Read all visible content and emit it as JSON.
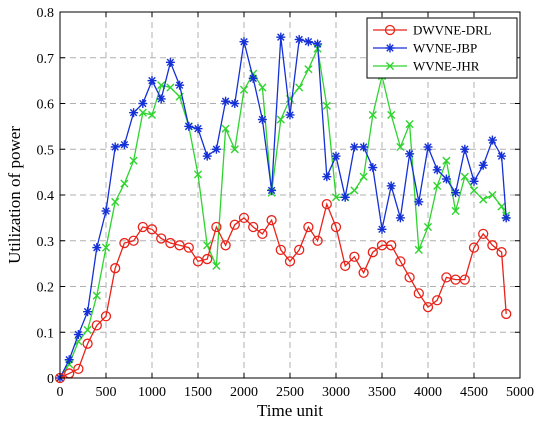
{
  "chart_data": {
    "type": "line",
    "xlabel": "Time unit",
    "ylabel": "Utilization of power",
    "xlim": [
      0,
      5000
    ],
    "ylim": [
      0,
      0.8
    ],
    "xticks": [
      0,
      500,
      1000,
      1500,
      2000,
      2500,
      3000,
      3500,
      4000,
      4500,
      5000
    ],
    "yticks": [
      0,
      0.1,
      0.2,
      0.3,
      0.4,
      0.5,
      0.6,
      0.7,
      0.8
    ],
    "grid": true,
    "legend_position": "top-right",
    "x": [
      0,
      100,
      200,
      300,
      400,
      500,
      600,
      700,
      800,
      900,
      1000,
      1100,
      1200,
      1300,
      1400,
      1500,
      1600,
      1700,
      1800,
      1900,
      2000,
      2100,
      2200,
      2300,
      2400,
      2500,
      2600,
      2700,
      2800,
      2900,
      3000,
      3100,
      3200,
      3300,
      3400,
      3500,
      3600,
      3700,
      3800,
      3900,
      4000,
      4100,
      4200,
      4300,
      4400,
      4500,
      4600,
      4700,
      4800,
      4850
    ],
    "series": [
      {
        "name": "DWVNE-DRL",
        "color": "#e8231a",
        "marker": "circle",
        "values": [
          0.0,
          0.01,
          0.02,
          0.075,
          0.115,
          0.135,
          0.24,
          0.295,
          0.3,
          0.33,
          0.325,
          0.305,
          0.295,
          0.29,
          0.285,
          0.255,
          0.26,
          0.33,
          0.29,
          0.335,
          0.35,
          0.33,
          0.315,
          0.345,
          0.28,
          0.255,
          0.28,
          0.33,
          0.3,
          0.38,
          0.33,
          0.245,
          0.265,
          0.23,
          0.275,
          0.29,
          0.29,
          0.255,
          0.22,
          0.185,
          0.155,
          0.17,
          0.22,
          0.215,
          0.215,
          0.285,
          0.315,
          0.29,
          0.275,
          0.14
        ]
      },
      {
        "name": "WVNE-JBP",
        "color": "#1430d6",
        "marker": "asterisk",
        "values": [
          0.0,
          0.04,
          0.095,
          0.145,
          0.285,
          0.365,
          0.505,
          0.51,
          0.58,
          0.6,
          0.65,
          0.61,
          0.69,
          0.64,
          0.55,
          0.545,
          0.485,
          0.5,
          0.605,
          0.6,
          0.735,
          0.655,
          0.565,
          0.41,
          0.745,
          0.575,
          0.74,
          0.735,
          0.73,
          0.44,
          0.485,
          0.395,
          0.505,
          0.505,
          0.46,
          0.325,
          0.42,
          0.35,
          0.49,
          0.385,
          0.505,
          0.455,
          0.435,
          0.405,
          0.5,
          0.43,
          0.465,
          0.52,
          0.485,
          0.35
        ]
      },
      {
        "name": "WVNE-JHR",
        "color": "#2fd42f",
        "marker": "cross",
        "values": [
          0.0,
          0.03,
          0.08,
          0.105,
          0.18,
          0.285,
          0.385,
          0.425,
          0.475,
          0.58,
          0.575,
          0.64,
          0.635,
          0.615,
          0.55,
          0.445,
          0.29,
          0.245,
          0.545,
          0.5,
          0.63,
          0.665,
          0.635,
          0.405,
          0.565,
          0.61,
          0.635,
          0.675,
          0.72,
          0.595,
          0.395,
          0.395,
          0.41,
          0.44,
          0.575,
          0.66,
          0.575,
          0.505,
          0.555,
          0.28,
          0.33,
          0.42,
          0.475,
          0.365,
          0.44,
          0.41,
          0.39,
          0.4,
          0.375,
          0.355
        ]
      }
    ]
  }
}
